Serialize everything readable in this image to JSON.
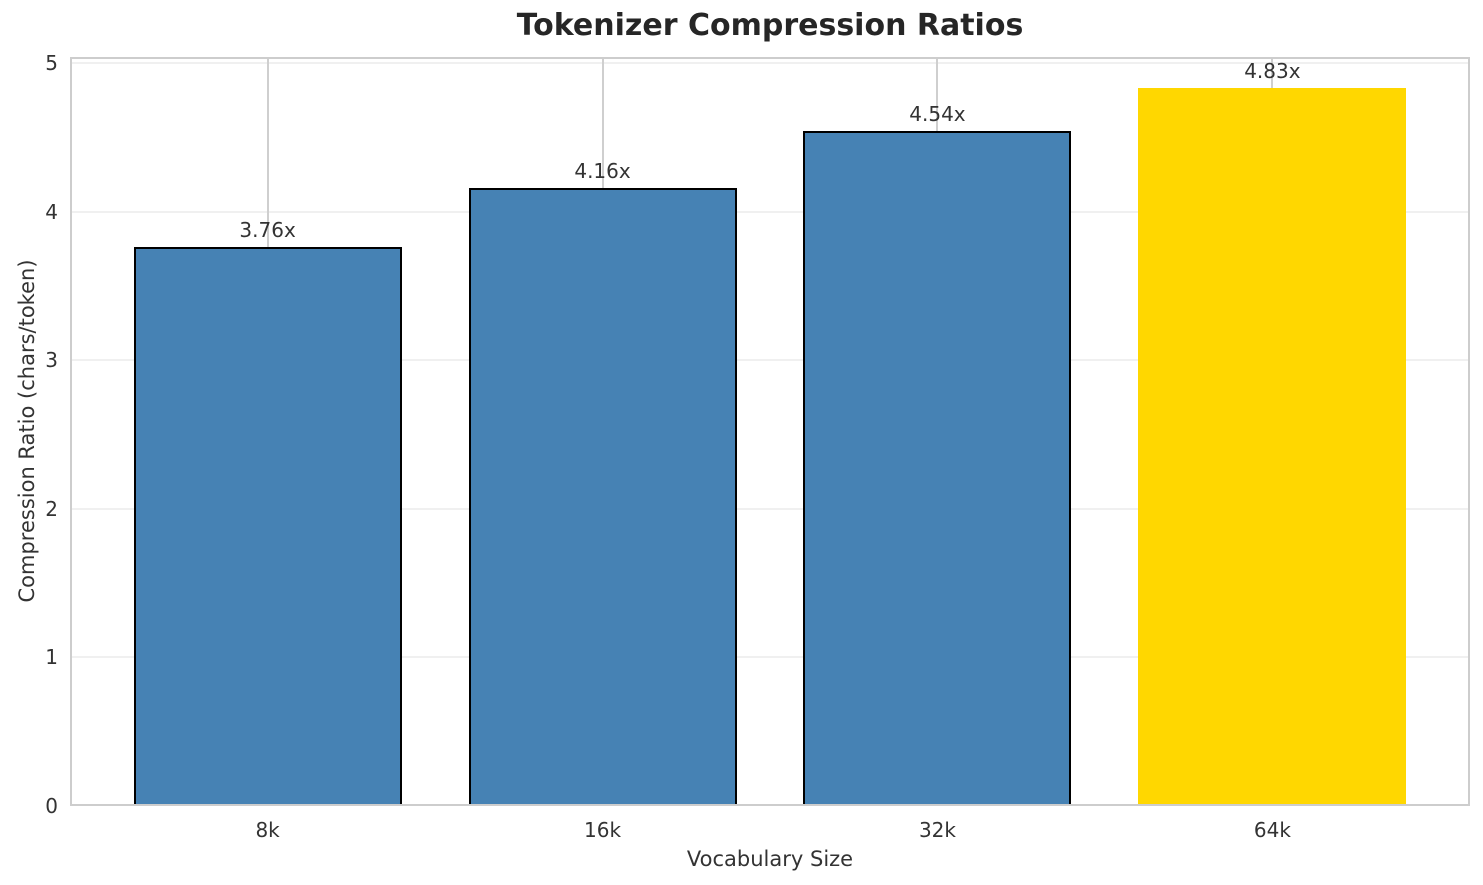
{
  "chart_data": {
    "type": "bar",
    "title": "Tokenizer Compression Ratios",
    "xlabel": "Vocabulary Size",
    "ylabel": "Compression Ratio (chars/token)",
    "categories": [
      "8k",
      "16k",
      "32k",
      "64k"
    ],
    "values": [
      3.76,
      4.16,
      4.54,
      4.83
    ],
    "bar_labels": [
      "3.76x",
      "4.16x",
      "4.54x",
      "4.83x"
    ],
    "bar_colors": [
      "#4682B4",
      "#4682B4",
      "#4682B4",
      "#FFD700"
    ],
    "bar_edge_colors": [
      "#000000",
      "#000000",
      "#000000",
      "none"
    ],
    "bar_width": 0.8,
    "xlim": [
      -0.59,
      3.59
    ],
    "ylim": [
      0,
      5.04
    ],
    "yticks": [
      0,
      1,
      2,
      3,
      4,
      5
    ],
    "grid": true,
    "legend_position": "none"
  },
  "colors": {
    "background": "#FFFFFF",
    "bar_default": "#4682B4",
    "bar_highlight": "#FFD700",
    "bar_edge": "#000000",
    "grid_horizontal": "#F0F0F0",
    "grid_vertical": "#CFCFCF",
    "spine": "#CDCDCD",
    "title_text": "#262626",
    "label_text": "#333333"
  }
}
